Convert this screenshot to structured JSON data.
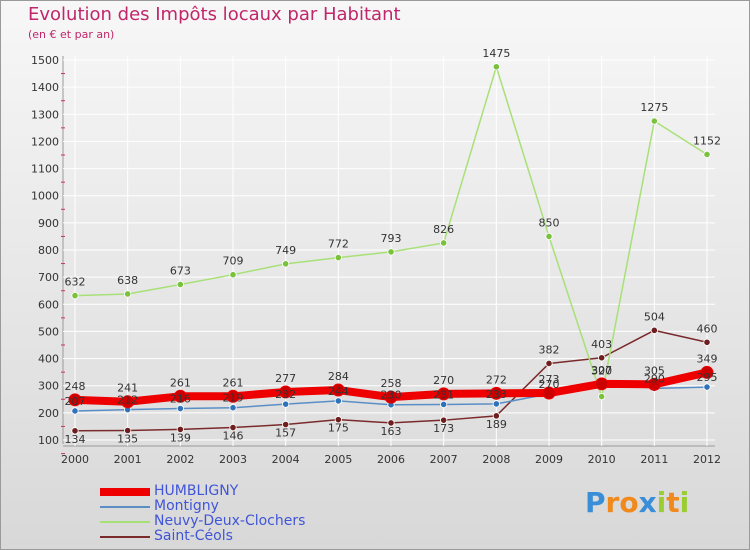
{
  "header": {
    "title": "Evolution des Impôts locaux par Habitant",
    "subtitle": "(en € et par an)"
  },
  "chart_data": {
    "type": "line",
    "title": "Evolution des Impôts locaux par Habitant",
    "subtitle": "(en € et par an)",
    "xlabel": "",
    "ylabel": "",
    "categories": [
      "2000",
      "2001",
      "2002",
      "2003",
      "2004",
      "2005",
      "2006",
      "2007",
      "2008",
      "2009",
      "2010",
      "2011",
      "2012"
    ],
    "ylim": [
      100,
      1500
    ],
    "yticks": [
      100,
      200,
      300,
      400,
      500,
      600,
      700,
      800,
      900,
      1000,
      1100,
      1200,
      1300,
      1400,
      1500
    ],
    "grid": true,
    "legend_position": "bottom-left",
    "series": [
      {
        "name": "Saint-Céols",
        "color": "#7a2a2a",
        "point_color": "#6e1e1e",
        "values": [
          134,
          135,
          139,
          146,
          157,
          175,
          163,
          173,
          189,
          382,
          403,
          504,
          460
        ],
        "label_side": "mixed"
      },
      {
        "name": "Neuvy-Deux-Clochers",
        "color": "#a8e078",
        "point_color": "#7ac13c",
        "values": [
          632,
          638,
          673,
          709,
          749,
          772,
          793,
          826,
          1475,
          850,
          260,
          1275,
          1152
        ],
        "labels": [
          "632",
          "638",
          "673",
          "709",
          "749",
          "772",
          "793",
          "826",
          "1475",
          "850",
          "",
          "1275",
          "1152"
        ]
      },
      {
        "name": "Montigny",
        "color": "#5a8fc6",
        "point_color": "#2f72b8",
        "values": [
          207,
          212,
          216,
          219,
          232,
          244,
          230,
          231,
          233,
          270,
          320,
          290,
          295
        ],
        "labels": [
          "207",
          "212",
          "216",
          "219",
          "232",
          "244",
          "230",
          "231",
          "233",
          "270",
          "320",
          "290",
          "295"
        ]
      },
      {
        "name": "HUMBLIGNY",
        "color": "#ee0000",
        "point_color": "#cc0000",
        "values": [
          248,
          241,
          261,
          261,
          277,
          284,
          258,
          270,
          272,
          273,
          307,
          305,
          349
        ],
        "labels": [
          "248",
          "241",
          "261",
          "261",
          "277",
          "284",
          "258",
          "270",
          "272",
          "273",
          "307",
          "305",
          "349"
        ],
        "width": 8
      }
    ]
  },
  "legend": {
    "items": [
      {
        "label": "HUMBLIGNY",
        "color": "#ee0000"
      },
      {
        "label": "Montigny",
        "color": "#5a8fc6"
      },
      {
        "label": "Neuvy-Deux-Clochers",
        "color": "#a8e078"
      },
      {
        "label": "Saint-Céols",
        "color": "#7a2a2a"
      }
    ]
  },
  "brand": {
    "letters": [
      "P",
      "r",
      "o",
      "x",
      "i",
      "t",
      "i"
    ],
    "colors": [
      "#3a8ed8",
      "#f08a1c",
      "#f08a1c",
      "#3a8ed8",
      "#9acd32",
      "#f08a1c",
      "#9acd32"
    ]
  }
}
